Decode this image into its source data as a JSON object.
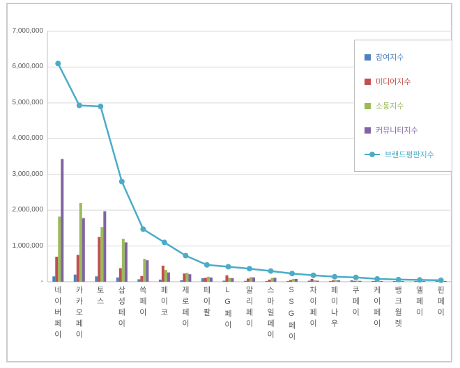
{
  "chart_data": {
    "type": "bar",
    "overlay_type": "line",
    "title": "",
    "grid": true,
    "legend_position": "right-top-overlay",
    "categories": [
      "네이버페이",
      "카카오페이",
      "토스",
      "삼성페이",
      "쓱페이",
      "페이코",
      "제로페이",
      "페이팔",
      "LG페이",
      "알리페이",
      "스마일페이",
      "SSG페이",
      "차이페이",
      "페이나우",
      "쿠페이",
      "케이페이",
      "뱅크월렛",
      "엘페이",
      "핀페이"
    ],
    "bar_series": [
      {
        "name": "참여지수",
        "color": "#4F81BD",
        "values": [
          150000,
          200000,
          150000,
          120000,
          70000,
          60000,
          40000,
          100000,
          30000,
          25000,
          20000,
          20000,
          30000,
          15000,
          40000,
          10000,
          10000,
          10000,
          8000
        ]
      },
      {
        "name": "미디어지수",
        "color": "#C0504D",
        "values": [
          700000,
          750000,
          1250000,
          380000,
          160000,
          450000,
          230000,
          110000,
          180000,
          90000,
          60000,
          50000,
          80000,
          40000,
          25000,
          25000,
          15000,
          15000,
          12000
        ]
      },
      {
        "name": "소통지수",
        "color": "#9BBB59",
        "values": [
          1820000,
          2200000,
          1530000,
          1200000,
          640000,
          330000,
          250000,
          140000,
          110000,
          130000,
          110000,
          80000,
          40000,
          45000,
          30000,
          25000,
          20000,
          15000,
          12000
        ]
      },
      {
        "name": "커뮤니티지수",
        "color": "#8064A2",
        "values": [
          3430000,
          1780000,
          1970000,
          1100000,
          600000,
          260000,
          210000,
          120000,
          100000,
          120000,
          110000,
          80000,
          30000,
          40000,
          25000,
          20000,
          15000,
          10000,
          8000
        ]
      }
    ],
    "line_series": {
      "name": "브랜드평판지수",
      "color": "#4BACC6",
      "type": "line",
      "values": [
        6100000,
        4930000,
        4900000,
        2800000,
        1470000,
        1100000,
        730000,
        470000,
        420000,
        365000,
        300000,
        230000,
        180000,
        140000,
        120000,
        80000,
        60000,
        50000,
        40000
      ]
    },
    "y_axis": {
      "min": 0,
      "max": 7000000,
      "tick_interval": 1000000,
      "tick_labels_top_to_bottom": [
        "7,000,000",
        "6,000,000",
        "5,000,000",
        "4,000,000",
        "3,000,000",
        "2,000,000",
        "1,000,000",
        "-"
      ]
    }
  }
}
